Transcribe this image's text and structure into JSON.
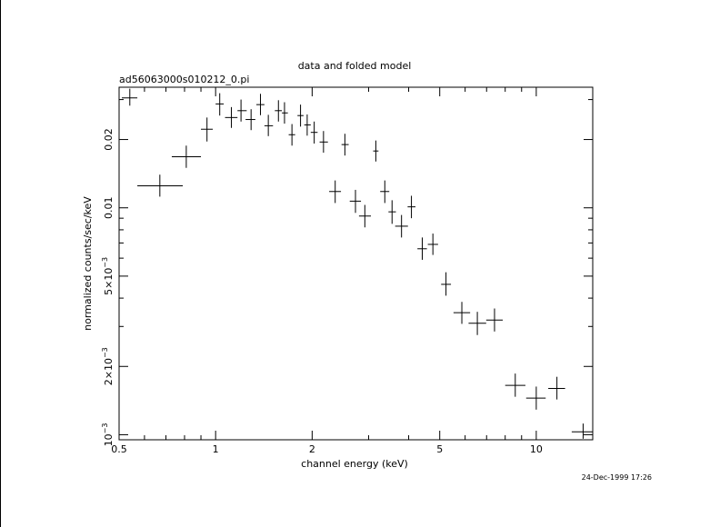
{
  "chart_data": {
    "type": "scatter",
    "title": "data and folded model",
    "subtitle": "ad56063000s010212_0.pi",
    "xlabel": "channel energy (keV)",
    "ylabel": "normalized counts/sec/keV",
    "xscale": "log",
    "yscale": "log",
    "xlim": [
      0.5,
      15.0
    ],
    "ylim": [
      0.00095,
      0.034
    ],
    "x_ticks": [
      {
        "value": 0.5,
        "label": "0.5"
      },
      {
        "value": 1,
        "label": "1"
      },
      {
        "value": 2,
        "label": "2"
      },
      {
        "value": 5,
        "label": "5"
      },
      {
        "value": 10,
        "label": "10"
      }
    ],
    "y_ticks": [
      {
        "value": 0.001,
        "base": "10",
        "exp": "−3",
        "mantissa": ""
      },
      {
        "value": 0.002,
        "base": "10",
        "exp": "−3",
        "mantissa": "2×"
      },
      {
        "value": 0.005,
        "base": "10",
        "exp": "−3",
        "mantissa": "5×"
      },
      {
        "value": 0.01,
        "label": "0.01"
      },
      {
        "value": 0.02,
        "label": "0.02"
      }
    ],
    "timestamp": "24-Dec-1999 17:26",
    "series": [
      {
        "points": [
          {
            "x": 0.54,
            "xerr": [
              0.51,
              0.57
            ],
            "y": 0.0305,
            "yerr": [
              0.0282,
              0.0335
            ]
          },
          {
            "x": 0.67,
            "xerr": [
              0.57,
              0.79
            ],
            "y": 0.0125,
            "yerr": [
              0.0112,
              0.014
            ]
          },
          {
            "x": 0.81,
            "xerr": [
              0.73,
              0.9
            ],
            "y": 0.0168,
            "yerr": [
              0.015,
              0.0188
            ]
          },
          {
            "x": 0.94,
            "xerr": [
              0.9,
              0.98
            ],
            "y": 0.0222,
            "yerr": [
              0.0196,
              0.025
            ]
          },
          {
            "x": 1.03,
            "xerr": [
              1.0,
              1.06
            ],
            "y": 0.0287,
            "yerr": [
              0.0255,
              0.032
            ]
          },
          {
            "x": 1.12,
            "xerr": [
              1.07,
              1.17
            ],
            "y": 0.025,
            "yerr": [
              0.0225,
              0.0278
            ]
          },
          {
            "x": 1.2,
            "xerr": [
              1.17,
              1.25
            ],
            "y": 0.0268,
            "yerr": [
              0.024,
              0.03
            ]
          },
          {
            "x": 1.29,
            "xerr": [
              1.24,
              1.33
            ],
            "y": 0.0245,
            "yerr": [
              0.022,
              0.0272
            ]
          },
          {
            "x": 1.38,
            "xerr": [
              1.34,
              1.42
            ],
            "y": 0.0285,
            "yerr": [
              0.0256,
              0.0318
            ]
          },
          {
            "x": 1.46,
            "xerr": [
              1.42,
              1.51
            ],
            "y": 0.023,
            "yerr": [
              0.0207,
              0.0257
            ]
          },
          {
            "x": 1.57,
            "xerr": [
              1.53,
              1.61
            ],
            "y": 0.0268,
            "yerr": [
              0.024,
              0.0298
            ]
          },
          {
            "x": 1.64,
            "xerr": [
              1.61,
              1.68
            ],
            "y": 0.0262,
            "yerr": [
              0.0235,
              0.0292
            ]
          },
          {
            "x": 1.73,
            "xerr": [
              1.69,
              1.77
            ],
            "y": 0.021,
            "yerr": [
              0.0188,
              0.0234
            ]
          },
          {
            "x": 1.84,
            "xerr": [
              1.8,
              1.88
            ],
            "y": 0.0255,
            "yerr": [
              0.0228,
              0.0285
            ]
          },
          {
            "x": 1.93,
            "xerr": [
              1.89,
              1.98
            ],
            "y": 0.0232,
            "yerr": [
              0.0208,
              0.0258
            ]
          },
          {
            "x": 2.03,
            "xerr": [
              1.98,
              2.08
            ],
            "y": 0.0215,
            "yerr": [
              0.0192,
              0.024
            ]
          },
          {
            "x": 2.17,
            "xerr": [
              2.11,
              2.24
            ],
            "y": 0.0195,
            "yerr": [
              0.0175,
              0.0218
            ]
          },
          {
            "x": 2.36,
            "xerr": [
              2.26,
              2.46
            ],
            "y": 0.0118,
            "yerr": [
              0.0105,
              0.0132
            ]
          },
          {
            "x": 2.53,
            "xerr": [
              2.47,
              2.6
            ],
            "y": 0.019,
            "yerr": [
              0.017,
              0.0212
            ]
          },
          {
            "x": 2.73,
            "xerr": [
              2.62,
              2.84
            ],
            "y": 0.0107,
            "yerr": [
              0.0095,
              0.012
            ]
          },
          {
            "x": 2.92,
            "xerr": [
              2.8,
              3.05
            ],
            "y": 0.0092,
            "yerr": [
              0.0082,
              0.0103
            ]
          },
          {
            "x": 3.16,
            "xerr": [
              3.1,
              3.22
            ],
            "y": 0.0178,
            "yerr": [
              0.016,
              0.0198
            ]
          },
          {
            "x": 3.37,
            "xerr": [
              3.26,
              3.48
            ],
            "y": 0.0118,
            "yerr": [
              0.0105,
              0.0132
            ]
          },
          {
            "x": 3.55,
            "xerr": [
              3.46,
              3.65
            ],
            "y": 0.0096,
            "yerr": [
              0.0085,
              0.0108
            ]
          },
          {
            "x": 3.8,
            "xerr": [
              3.63,
              3.98
            ],
            "y": 0.0083,
            "yerr": [
              0.0074,
              0.0093
            ]
          },
          {
            "x": 4.08,
            "xerr": [
              3.97,
              4.2
            ],
            "y": 0.0101,
            "yerr": [
              0.009,
              0.0113
            ]
          },
          {
            "x": 4.41,
            "xerr": [
              4.26,
              4.56
            ],
            "y": 0.0066,
            "yerr": [
              0.0059,
              0.0074
            ]
          },
          {
            "x": 4.76,
            "xerr": [
              4.59,
              4.94
            ],
            "y": 0.0069,
            "yerr": [
              0.0062,
              0.0077
            ]
          },
          {
            "x": 5.23,
            "xerr": [
              5.05,
              5.42
            ],
            "y": 0.0046,
            "yerr": [
              0.0041,
              0.0052
            ]
          },
          {
            "x": 5.86,
            "xerr": [
              5.52,
              6.22
            ],
            "y": 0.00345,
            "yerr": [
              0.00308,
              0.00385
            ]
          },
          {
            "x": 6.55,
            "xerr": [
              6.15,
              6.98
            ],
            "y": 0.0031,
            "yerr": [
              0.00275,
              0.00348
            ]
          },
          {
            "x": 7.41,
            "xerr": [
              6.98,
              7.86
            ],
            "y": 0.0032,
            "yerr": [
              0.00285,
              0.0036
            ]
          },
          {
            "x": 8.6,
            "xerr": [
              8.0,
              9.25
            ],
            "y": 0.00165,
            "yerr": [
              0.00147,
              0.00186
            ]
          },
          {
            "x": 10.0,
            "xerr": [
              9.3,
              10.7
            ],
            "y": 0.00145,
            "yerr": [
              0.00129,
              0.00163
            ]
          },
          {
            "x": 11.6,
            "xerr": [
              10.9,
              12.3
            ],
            "y": 0.0016,
            "yerr": [
              0.00143,
              0.0018
            ]
          },
          {
            "x": 14.0,
            "xerr": [
              12.9,
              15.0
            ],
            "y": 0.00103,
            "yerr": [
              0.00096,
              0.00112
            ]
          }
        ]
      }
    ]
  }
}
